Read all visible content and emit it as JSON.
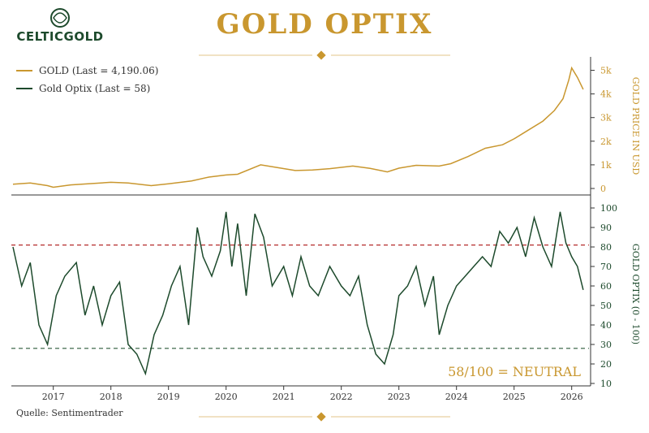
{
  "header": {
    "logo_text": "CELTICGOLD",
    "title": "GOLD OPTIX"
  },
  "legend": {
    "gold_label": "GOLD (Last = 4,190.06)",
    "optix_label": "Gold Optix (Last = 58)"
  },
  "footer": {
    "source": "Quelle: Sentimentrader"
  },
  "status_text": "58/100 = NEUTRAL",
  "colors": {
    "gold": "#c9972f",
    "optix": "#1d4a2c",
    "upper_threshold": "#b52a2a",
    "lower_threshold": "#2b5a3a"
  },
  "chart_data": [
    {
      "type": "line",
      "ylabel": "GOLD PRICE IN USD",
      "ylim": [
        0,
        5500
      ],
      "yticks": [
        "0",
        "1k",
        "2k",
        "3k",
        "4k",
        "5k"
      ],
      "ytick_values": [
        0,
        1000,
        2000,
        3000,
        4000,
        5000
      ],
      "series": [
        {
          "name": "GOLD",
          "points": [
            [
              2016.3,
              180
            ],
            [
              2016.6,
              230
            ],
            [
              2016.9,
              120
            ],
            [
              2017.0,
              50
            ],
            [
              2017.3,
              150
            ],
            [
              2017.6,
              200
            ],
            [
              2018.0,
              260
            ],
            [
              2018.3,
              230
            ],
            [
              2018.7,
              120
            ],
            [
              2019.0,
              200
            ],
            [
              2019.4,
              320
            ],
            [
              2019.7,
              480
            ],
            [
              2020.0,
              570
            ],
            [
              2020.2,
              600
            ],
            [
              2020.6,
              1000
            ],
            [
              2020.9,
              880
            ],
            [
              2021.2,
              760
            ],
            [
              2021.5,
              780
            ],
            [
              2021.8,
              840
            ],
            [
              2022.2,
              950
            ],
            [
              2022.5,
              850
            ],
            [
              2022.8,
              700
            ],
            [
              2023.0,
              860
            ],
            [
              2023.3,
              980
            ],
            [
              2023.7,
              950
            ],
            [
              2023.9,
              1050
            ],
            [
              2024.2,
              1350
            ],
            [
              2024.5,
              1700
            ],
            [
              2024.8,
              1850
            ],
            [
              2025.0,
              2100
            ],
            [
              2025.2,
              2400
            ],
            [
              2025.5,
              2850
            ],
            [
              2025.7,
              3300
            ],
            [
              2025.85,
              3800
            ],
            [
              2025.95,
              4600
            ],
            [
              2026.0,
              5100
            ],
            [
              2026.1,
              4700
            ],
            [
              2026.2,
              4190
            ]
          ]
        }
      ]
    },
    {
      "type": "line",
      "ylabel": "GOLD OPTIX (0 - 100)",
      "ylim": [
        10,
        100
      ],
      "yticks": [
        "10",
        "20",
        "30",
        "40",
        "50",
        "60",
        "70",
        "80",
        "90",
        "100"
      ],
      "ytick_values": [
        10,
        20,
        30,
        40,
        50,
        60,
        70,
        80,
        90,
        100
      ],
      "thresholds": [
        81,
        28
      ],
      "x_ticks": [
        "2017",
        "2018",
        "2019",
        "2020",
        "2021",
        "2022",
        "2023",
        "2024",
        "2025",
        "2026"
      ],
      "x_tick_values": [
        2017,
        2018,
        2019,
        2020,
        2021,
        2022,
        2023,
        2024,
        2025,
        2026
      ],
      "xlim": [
        2016.3,
        2026.3
      ],
      "series": [
        {
          "name": "Gold Optix",
          "points": [
            [
              2016.3,
              80
            ],
            [
              2016.45,
              60
            ],
            [
              2016.6,
              72
            ],
            [
              2016.75,
              40
            ],
            [
              2016.9,
              30
            ],
            [
              2017.05,
              55
            ],
            [
              2017.2,
              65
            ],
            [
              2017.4,
              72
            ],
            [
              2017.55,
              45
            ],
            [
              2017.7,
              60
            ],
            [
              2017.85,
              40
            ],
            [
              2018.0,
              55
            ],
            [
              2018.15,
              62
            ],
            [
              2018.3,
              30
            ],
            [
              2018.45,
              25
            ],
            [
              2018.6,
              15
            ],
            [
              2018.75,
              35
            ],
            [
              2018.9,
              45
            ],
            [
              2019.05,
              60
            ],
            [
              2019.2,
              70
            ],
            [
              2019.35,
              40
            ],
            [
              2019.5,
              90
            ],
            [
              2019.6,
              75
            ],
            [
              2019.75,
              65
            ],
            [
              2019.9,
              78
            ],
            [
              2020.0,
              98
            ],
            [
              2020.1,
              70
            ],
            [
              2020.2,
              92
            ],
            [
              2020.35,
              55
            ],
            [
              2020.5,
              97
            ],
            [
              2020.65,
              85
            ],
            [
              2020.8,
              60
            ],
            [
              2021.0,
              70
            ],
            [
              2021.15,
              55
            ],
            [
              2021.3,
              75
            ],
            [
              2021.45,
              60
            ],
            [
              2021.6,
              55
            ],
            [
              2021.8,
              70
            ],
            [
              2022.0,
              60
            ],
            [
              2022.15,
              55
            ],
            [
              2022.3,
              65
            ],
            [
              2022.45,
              40
            ],
            [
              2022.6,
              25
            ],
            [
              2022.75,
              20
            ],
            [
              2022.9,
              35
            ],
            [
              2023.0,
              55
            ],
            [
              2023.15,
              60
            ],
            [
              2023.3,
              70
            ],
            [
              2023.45,
              50
            ],
            [
              2023.6,
              65
            ],
            [
              2023.7,
              35
            ],
            [
              2023.85,
              50
            ],
            [
              2024.0,
              60
            ],
            [
              2024.15,
              65
            ],
            [
              2024.3,
              70
            ],
            [
              2024.45,
              75
            ],
            [
              2024.6,
              70
            ],
            [
              2024.75,
              88
            ],
            [
              2024.9,
              82
            ],
            [
              2025.05,
              90
            ],
            [
              2025.2,
              75
            ],
            [
              2025.35,
              95
            ],
            [
              2025.5,
              80
            ],
            [
              2025.65,
              70
            ],
            [
              2025.8,
              98
            ],
            [
              2025.9,
              82
            ],
            [
              2026.0,
              75
            ],
            [
              2026.1,
              70
            ],
            [
              2026.2,
              58
            ]
          ]
        }
      ]
    }
  ]
}
